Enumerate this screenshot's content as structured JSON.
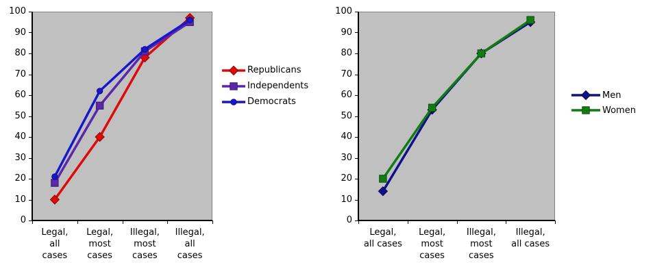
{
  "figure": {
    "background": "#FFFFFF",
    "description": "Two line charts of opinion on abortion legality, by party affiliation and by gender"
  },
  "chart_data": [
    {
      "id": "by-party",
      "type": "line",
      "title": "",
      "xlabel": "",
      "ylabel": "",
      "categories": [
        "Legal, all cases",
        "Legal, most cases",
        "Illegal, most cases",
        "Illegal, all cases"
      ],
      "category_display": [
        "Legal,\nall\ncases",
        "Legal,\nmost\ncases",
        "Illegal,\nmost\ncases",
        "Illegal,\nall\ncases"
      ],
      "series": [
        {
          "name": "Republicans",
          "marker": "diamond",
          "color": "#DE0A0A",
          "marker_border": "#8F0000",
          "values": [
            10,
            40,
            78,
            97
          ]
        },
        {
          "name": "Independents",
          "marker": "square",
          "color": "#5A28A8",
          "marker_border": "#3C1A73",
          "values": [
            18,
            55,
            81,
            95
          ]
        },
        {
          "name": "Democrats",
          "marker": "circle",
          "color": "#1717CC",
          "marker_border": "#0D0D8A",
          "values": [
            21,
            62,
            82,
            96
          ]
        }
      ],
      "ylim": [
        0,
        100
      ],
      "ytick_step": 10,
      "ytick_labels": [
        "0",
        "10",
        "20",
        "30",
        "40",
        "50",
        "60",
        "70",
        "80",
        "90",
        "100"
      ],
      "grid": false,
      "legend_position": "right-middle",
      "plot_bg": "#C0C0C0",
      "plot_border": "#808080",
      "axis_color": "#000000",
      "text_color": "#000000"
    },
    {
      "id": "by-gender",
      "type": "line",
      "title": "",
      "xlabel": "",
      "ylabel": "",
      "categories": [
        "Legal, all cases",
        "Legal, most cases",
        "Illegal, most cases",
        "Illegal, all cases"
      ],
      "category_display": [
        "Legal,\nall cases",
        "Legal,\nmost\ncases",
        "Illegal,\nmost\ncases",
        "Illegal,\nall cases"
      ],
      "series": [
        {
          "name": "Men",
          "marker": "diamond",
          "color": "#10108C",
          "marker_border": "#08084F",
          "values": [
            14,
            53,
            80,
            95
          ]
        },
        {
          "name": "Women",
          "marker": "square",
          "color": "#117C11",
          "marker_border": "#0A4F0A",
          "values": [
            20,
            54,
            80,
            96
          ]
        }
      ],
      "ylim": [
        0,
        100
      ],
      "ytick_step": 10,
      "ytick_labels": [
        "0",
        "10",
        "20",
        "30",
        "40",
        "50",
        "60",
        "70",
        "80",
        "90",
        "100"
      ],
      "grid": false,
      "legend_position": "right-middle",
      "plot_bg": "#C0C0C0",
      "plot_border": "#808080",
      "axis_color": "#000000",
      "text_color": "#000000"
    }
  ]
}
